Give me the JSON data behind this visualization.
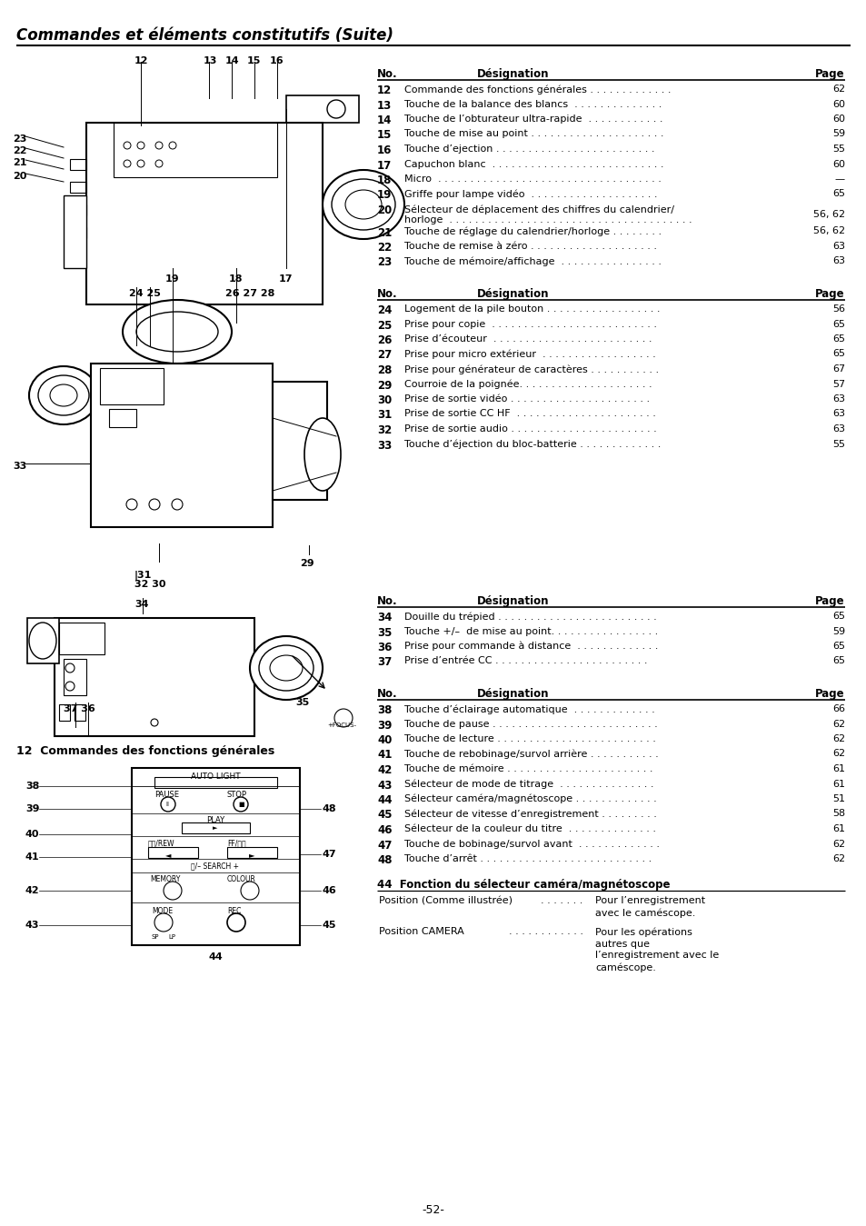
{
  "title": "Commandes et éléments constitutifs (Suite)",
  "page_number": "-52-",
  "table1_rows": [
    [
      "12",
      "Commande des fonctions générales . . . . . . . . . . . . .",
      "62"
    ],
    [
      "13",
      "Touche de la balance des blancs  . . . . . . . . . . . . . .",
      "60"
    ],
    [
      "14",
      "Touche de l’obturateur ultra-rapide  . . . . . . . . . . . .",
      "60"
    ],
    [
      "15",
      "Touche de mise au point . . . . . . . . . . . . . . . . . . . . .",
      "59"
    ],
    [
      "16",
      "Touche d’ejection . . . . . . . . . . . . . . . . . . . . . . . . .",
      "55"
    ],
    [
      "17",
      "Capuchon blanc  . . . . . . . . . . . . . . . . . . . . . . . . . . .",
      "60"
    ],
    [
      "18",
      "Micro  . . . . . . . . . . . . . . . . . . . . . . . . . . . . . . . . . . .",
      "—"
    ],
    [
      "19",
      "Griffe pour lampe vidéo  . . . . . . . . . . . . . . . . . . . .",
      "65"
    ],
    [
      "20",
      "Sélecteur de déplacement des chiffres du calendrier/\nhorloge  . . . . . . . . . . . . . . . . . . . . . . . . . . . . . . . . . . . . . .",
      "56, 62"
    ],
    [
      "21",
      "Touche de réglage du calendrier/horloge . . . . . . . .",
      "56, 62"
    ],
    [
      "22",
      "Touche de remise à zéro . . . . . . . . . . . . . . . . . . . .",
      "63"
    ],
    [
      "23",
      "Touche de mémoire/affichage  . . . . . . . . . . . . . . . .",
      "63"
    ]
  ],
  "table2_rows": [
    [
      "24",
      "Logement de la pile bouton . . . . . . . . . . . . . . . . . .",
      "56"
    ],
    [
      "25",
      "Prise pour copie  . . . . . . . . . . . . . . . . . . . . . . . . . .",
      "65"
    ],
    [
      "26",
      "Prise d’écouteur  . . . . . . . . . . . . . . . . . . . . . . . . .",
      "65"
    ],
    [
      "27",
      "Prise pour micro extérieur  . . . . . . . . . . . . . . . . . .",
      "65"
    ],
    [
      "28",
      "Prise pour générateur de caractères . . . . . . . . . . .",
      "67"
    ],
    [
      "29",
      "Courroie de la poignée. . . . . . . . . . . . . . . . . . . . .",
      "57"
    ],
    [
      "30",
      "Prise de sortie vidéo . . . . . . . . . . . . . . . . . . . . . .",
      "63"
    ],
    [
      "31",
      "Prise de sortie CC HF  . . . . . . . . . . . . . . . . . . . . . .",
      "63"
    ],
    [
      "32",
      "Prise de sortie audio . . . . . . . . . . . . . . . . . . . . . . .",
      "63"
    ],
    [
      "33",
      "Touche d’éjection du bloc-batterie . . . . . . . . . . . . .",
      "55"
    ]
  ],
  "table3_rows": [
    [
      "34",
      "Douille du trépied . . . . . . . . . . . . . . . . . . . . . . . . .",
      "65"
    ],
    [
      "35",
      "Touche +/–  de mise au point. . . . . . . . . . . . . . . . .",
      "59"
    ],
    [
      "36",
      "Prise pour commande à distance  . . . . . . . . . . . . .",
      "65"
    ],
    [
      "37",
      "Prise d’entrée CC . . . . . . . . . . . . . . . . . . . . . . . .",
      "65"
    ]
  ],
  "table4_rows": [
    [
      "38",
      "Touche d’éclairage automatique  . . . . . . . . . . . . .",
      "66"
    ],
    [
      "39",
      "Touche de pause . . . . . . . . . . . . . . . . . . . . . . . . . .",
      "62"
    ],
    [
      "40",
      "Touche de lecture . . . . . . . . . . . . . . . . . . . . . . . . .",
      "62"
    ],
    [
      "41",
      "Touche de rebobinage/survol arrière . . . . . . . . . . .",
      "62"
    ],
    [
      "42",
      "Touche de mémoire . . . . . . . . . . . . . . . . . . . . . . .",
      "61"
    ],
    [
      "43",
      "Sélecteur de mode de titrage  . . . . . . . . . . . . . . .",
      "61"
    ],
    [
      "44",
      "Sélecteur caméra/magnétoscope . . . . . . . . . . . . .",
      "51"
    ],
    [
      "45",
      "Sélecteur de vitesse d’enregistrement . . . . . . . . .",
      "58"
    ],
    [
      "46",
      "Sélecteur de la couleur du titre  . . . . . . . . . . . . . .",
      "61"
    ],
    [
      "47",
      "Touche de bobinage/survol avant  . . . . . . . . . . . . .",
      "62"
    ],
    [
      "48",
      "Touche d’arrêt . . . . . . . . . . . . . . . . . . . . . . . . . . .",
      "62"
    ]
  ],
  "section44_title": "44  Fonction du sélecteur caméra/magnétoscope",
  "cam_label1": "12  Commandes des fonctions générales",
  "bg_color": "#ffffff"
}
